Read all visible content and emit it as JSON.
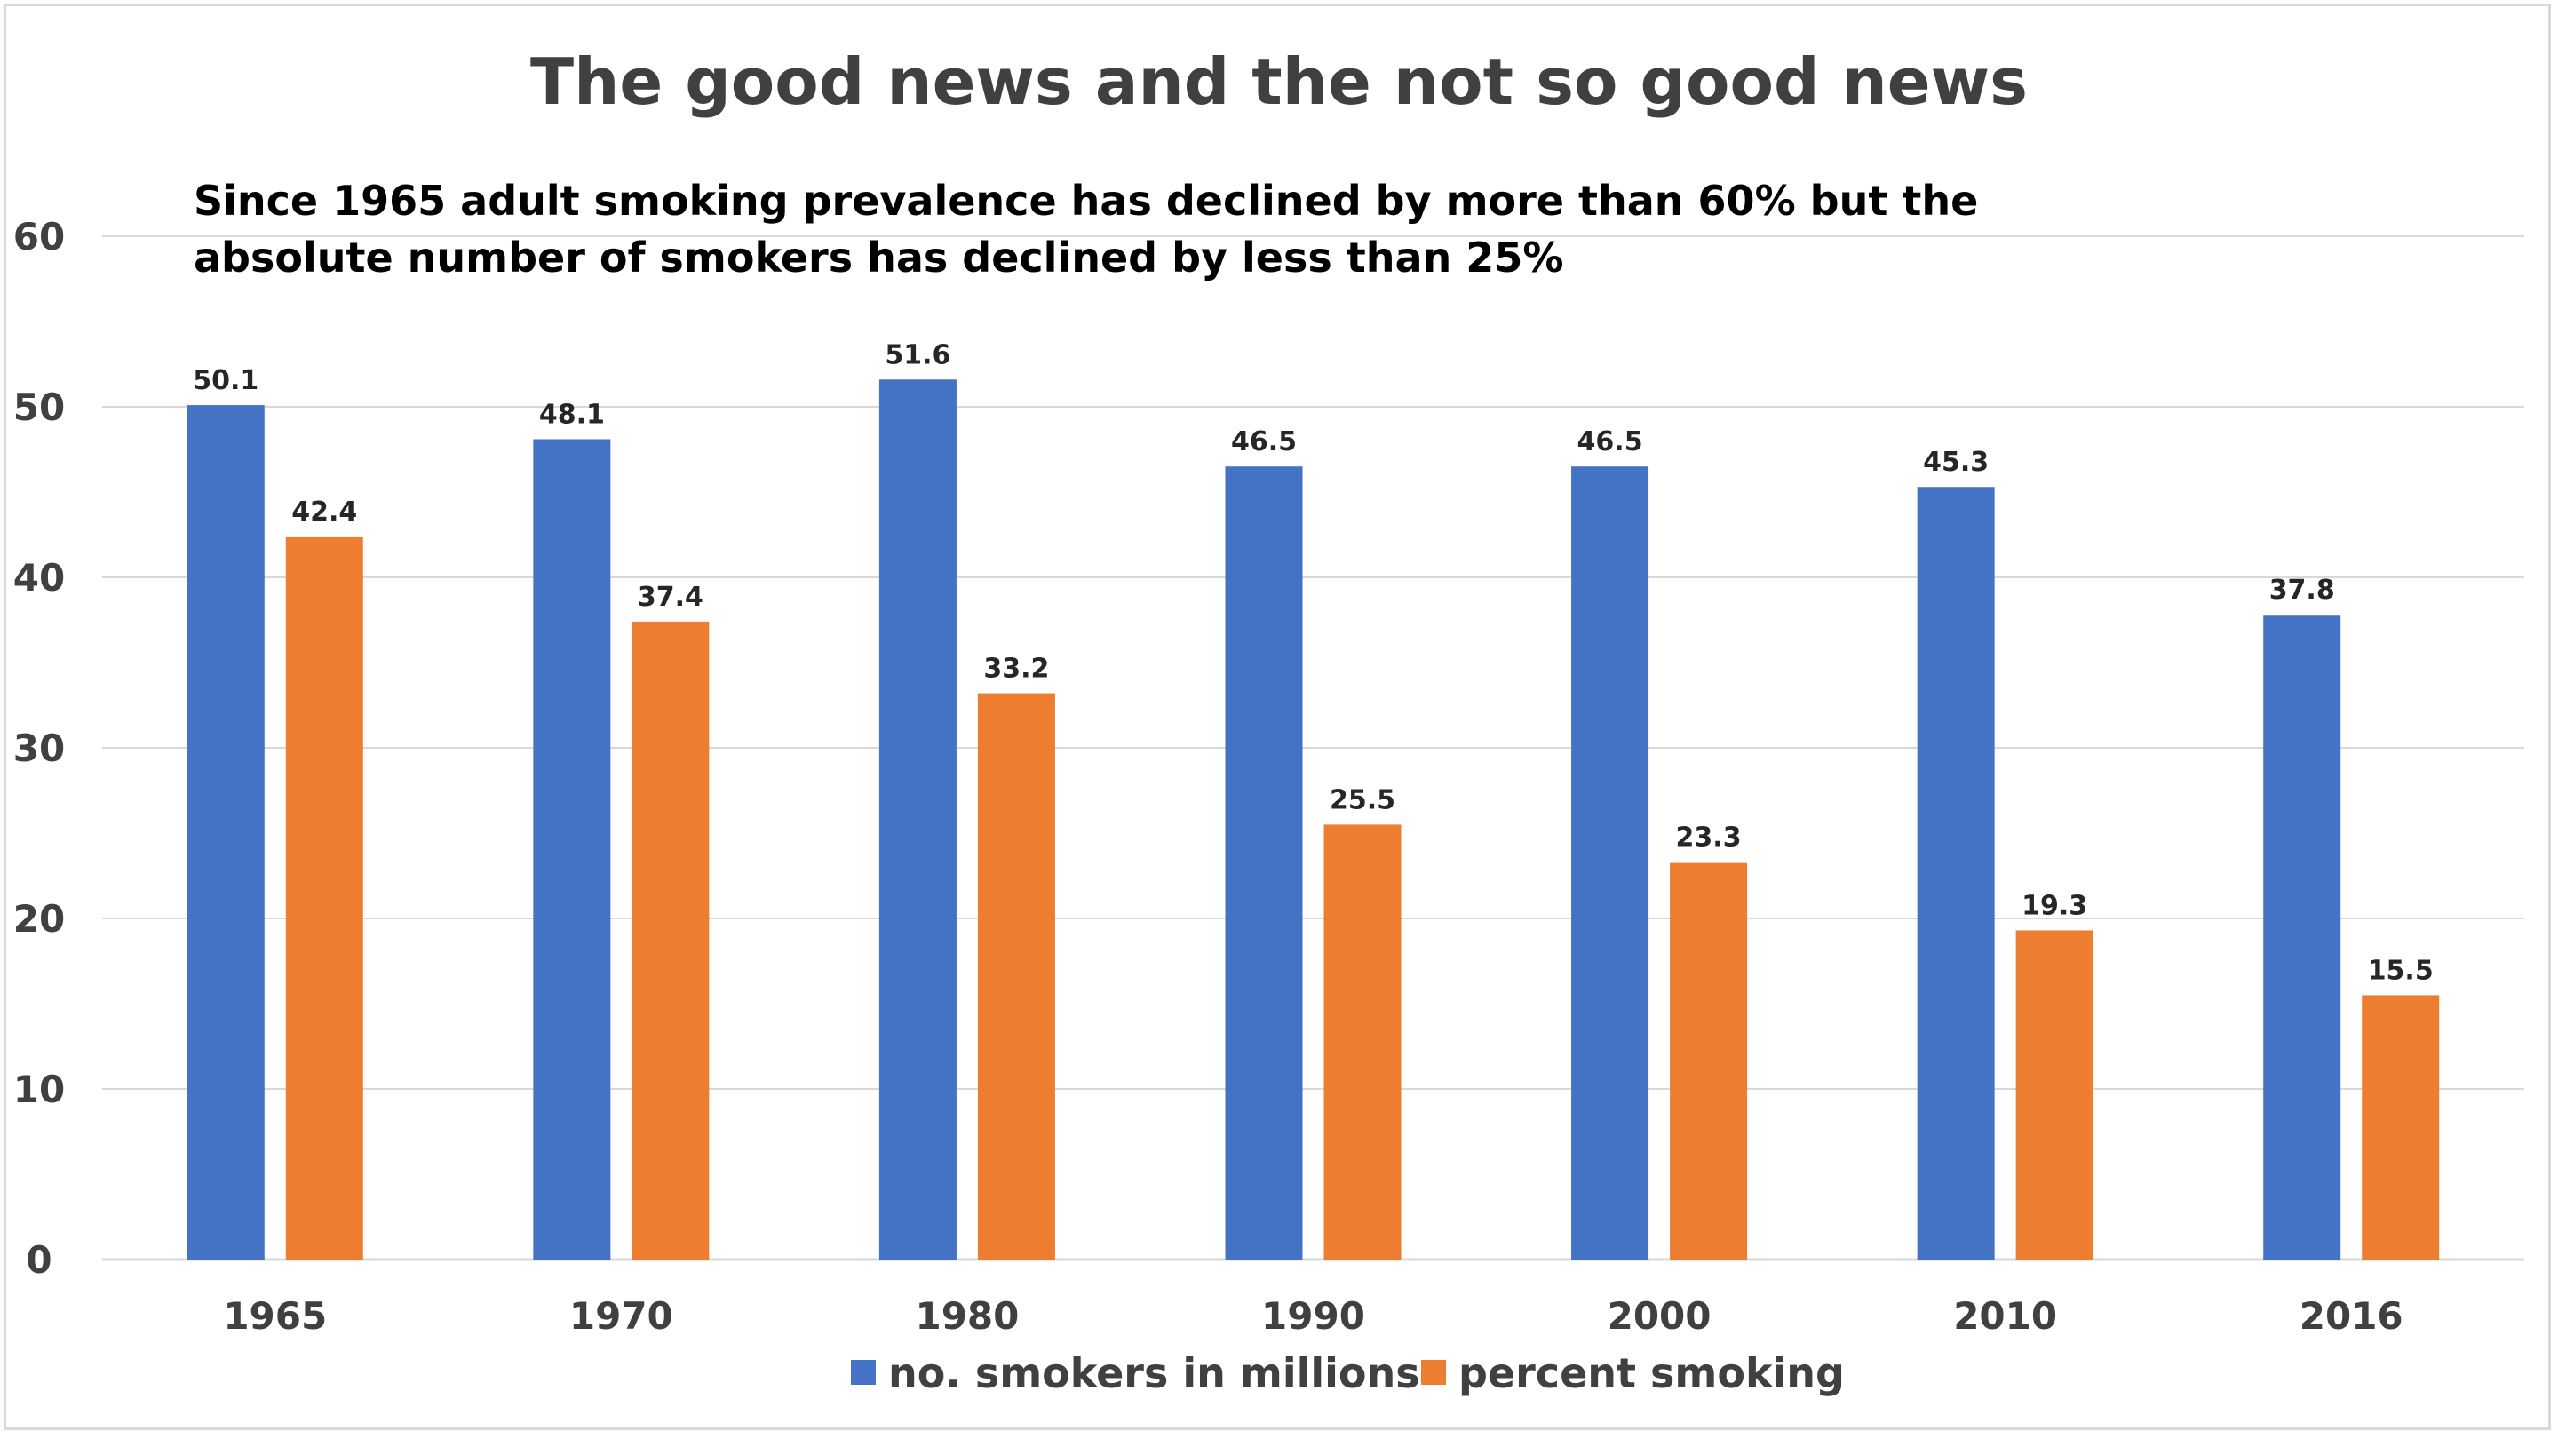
{
  "chart_data": {
    "type": "bar",
    "title": "The good news and the not so good news",
    "subtitle_lines": [
      "Since 1965 adult smoking prevalence has declined by more than 60% but the",
      "absolute number of smokers has declined by less than 25%"
    ],
    "categories": [
      "1965",
      "1970",
      "1980",
      "1990",
      "2000",
      "2010",
      "2016"
    ],
    "series": [
      {
        "name": "no. smokers in millions",
        "color": "#4472c4",
        "values": [
          50.1,
          48.1,
          51.6,
          46.5,
          46.5,
          45.3,
          37.8
        ]
      },
      {
        "name": "percent smoking",
        "color": "#ed7d31",
        "values": [
          42.4,
          37.4,
          33.2,
          25.5,
          23.3,
          19.3,
          15.5
        ]
      }
    ],
    "ylim": [
      0,
      60
    ],
    "yticks": [
      "0",
      "10",
      "20",
      "30",
      "40",
      "50",
      "60"
    ],
    "grid": true,
    "gridColor": "#d9d9d9",
    "legend_position": "bottom"
  }
}
